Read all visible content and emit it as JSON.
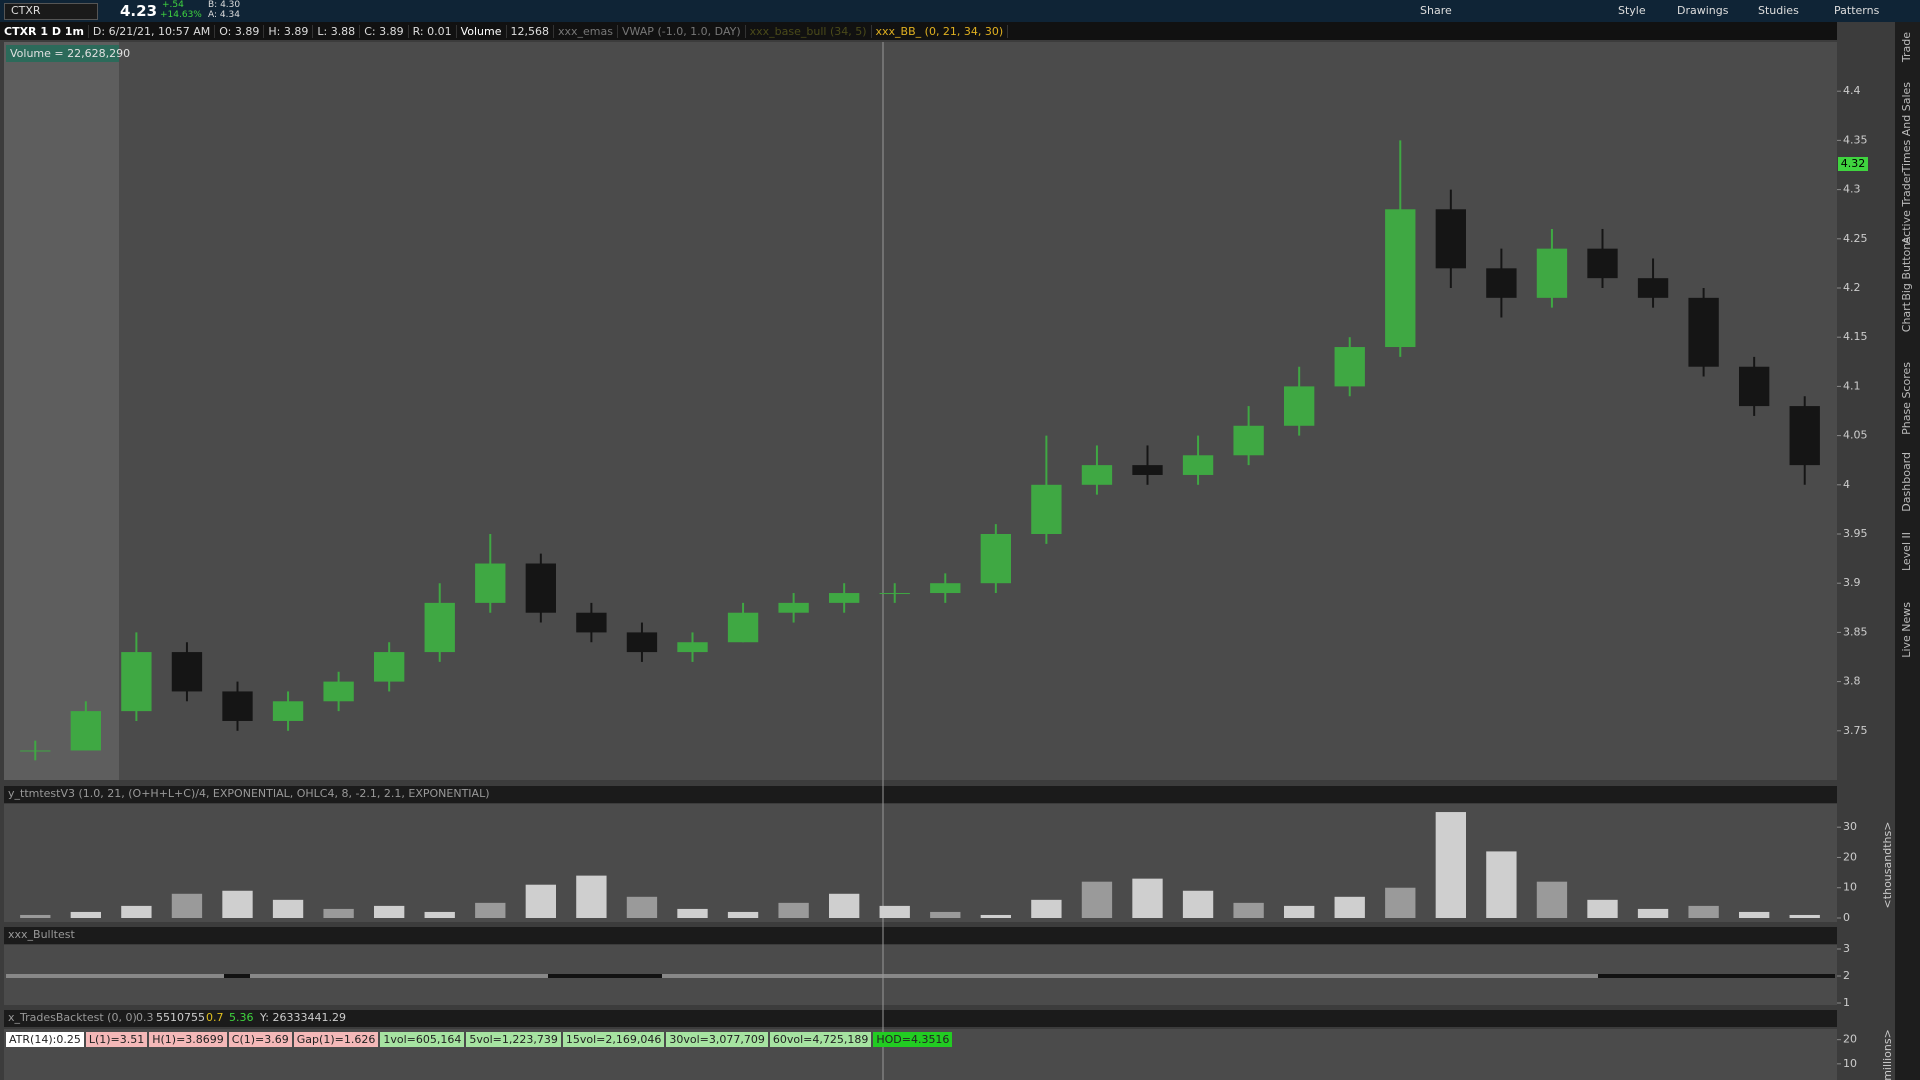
{
  "header": {
    "symbol": "CTXR",
    "last": "4.23",
    "change": "+.54",
    "change_pct": "+14.63%",
    "bid": "B: 4.30",
    "ask": "A: 4.34",
    "buttons": [
      "Share",
      "Style",
      "Drawings",
      "Studies",
      "Patterns"
    ]
  },
  "info_bar": {
    "title": "CTXR 1 D 1m",
    "date": "D: 6/21/21, 10:57 AM",
    "open": "O: 3.89",
    "high": "H: 3.89",
    "low": "L: 3.88",
    "close": "C: 3.89",
    "range": "R: 0.01",
    "volume_label": "Volume",
    "volume": "12,568",
    "studies": [
      "xxx_emas",
      "VWAP (-1.0, 1.0, DAY)",
      "xxx_base_bull (34, 5)",
      "xxx_BB_ (0, 21, 34, 30)"
    ]
  },
  "volume_bubble": "Volume = 22,628,290",
  "price_tag": "4.32",
  "side_tabs": [
    "Trade",
    "Times And Sales",
    "Active Trader",
    "Big Buttons",
    "Chart",
    "Phase Scores",
    "Dashboard",
    "Level II",
    "Live News"
  ],
  "chart": {
    "type": "candlestick",
    "ylim": [
      3.7,
      4.45
    ],
    "yticks": [
      4.4,
      4.35,
      4.3,
      4.25,
      4.2,
      4.15,
      4.1,
      4.05,
      4,
      3.95,
      3.9,
      3.85,
      3.8,
      3.75
    ],
    "up_color": "#3fa843",
    "down_color": "#151515",
    "candles": {
      "open": [
        3.73,
        3.73,
        3.77,
        3.83,
        3.79,
        3.76,
        3.78,
        3.8,
        3.83,
        3.88,
        3.92,
        3.87,
        3.85,
        3.83,
        3.84,
        3.87,
        3.88,
        3.89,
        3.89,
        3.9,
        3.95,
        4.0,
        4.02,
        4.01,
        4.03,
        4.06,
        4.1,
        4.14,
        4.28,
        4.22,
        4.19,
        4.24,
        4.21,
        4.19,
        4.12,
        4.08
      ],
      "high": [
        3.74,
        3.78,
        3.85,
        3.84,
        3.8,
        3.79,
        3.81,
        3.84,
        3.9,
        3.95,
        3.93,
        3.88,
        3.86,
        3.85,
        3.88,
        3.89,
        3.9,
        3.9,
        3.91,
        3.96,
        4.05,
        4.04,
        4.04,
        4.05,
        4.08,
        4.12,
        4.15,
        4.35,
        4.3,
        4.24,
        4.26,
        4.26,
        4.23,
        4.2,
        4.13,
        4.09
      ],
      "low": [
        3.72,
        3.73,
        3.76,
        3.78,
        3.75,
        3.75,
        3.77,
        3.79,
        3.82,
        3.87,
        3.86,
        3.84,
        3.82,
        3.82,
        3.84,
        3.86,
        3.87,
        3.88,
        3.88,
        3.89,
        3.94,
        3.99,
        4.0,
        4.0,
        4.02,
        4.05,
        4.09,
        4.13,
        4.2,
        4.17,
        4.18,
        4.2,
        4.18,
        4.11,
        4.07,
        4.0
      ],
      "close": [
        3.73,
        3.77,
        3.83,
        3.79,
        3.76,
        3.78,
        3.8,
        3.83,
        3.88,
        3.92,
        3.87,
        3.85,
        3.83,
        3.84,
        3.87,
        3.88,
        3.89,
        3.89,
        3.9,
        3.95,
        4.0,
        4.02,
        4.01,
        4.03,
        4.06,
        4.1,
        4.14,
        4.28,
        4.22,
        4.19,
        4.24,
        4.21,
        4.19,
        4.12,
        4.08,
        4.02
      ]
    }
  },
  "momentum": {
    "label": "y_ttmtestV3 (1.0, 21, (O+H+L+C)/4, EXPONENTIAL, OHLC4, 8, -2.1, 2.1, EXPONENTIAL)",
    "ylim": [
      0,
      37
    ],
    "yticks": [
      0,
      10,
      20,
      30
    ],
    "axis_label": "<thousandths>",
    "values": [
      1,
      2,
      4,
      8,
      9,
      6,
      3,
      4,
      2,
      5,
      11,
      14,
      7,
      3,
      2,
      5,
      8,
      4,
      2,
      1,
      6,
      12,
      13,
      9,
      5,
      4,
      7,
      10,
      35,
      22,
      12,
      6,
      3,
      4,
      2,
      1
    ]
  },
  "bulltest": {
    "label": "xxx_Bulltest",
    "ylim": [
      1,
      3
    ],
    "yticks": [
      3,
      2,
      1
    ]
  },
  "backtest": {
    "label": "x_TradesBacktest (0, 0)",
    "fields": [
      "0.3",
      "5510755",
      "0.7",
      "5.36",
      "Y: 26333441.29"
    ],
    "ylim": [
      0,
      24
    ],
    "yticks": [
      20,
      10
    ],
    "axis_label": "millions>",
    "stats": [
      "ATR(14):0.25",
      "L(1)=3.51",
      "H(1)=3.8699",
      "C(1)=3.69",
      "Gap(1)=1.626",
      "1vol=605,164",
      "5vol=1,223,739",
      "15vol=2,169,046",
      "30vol=3,077,709",
      "60vol=4,725,189",
      "HOD=4.3516"
    ]
  }
}
